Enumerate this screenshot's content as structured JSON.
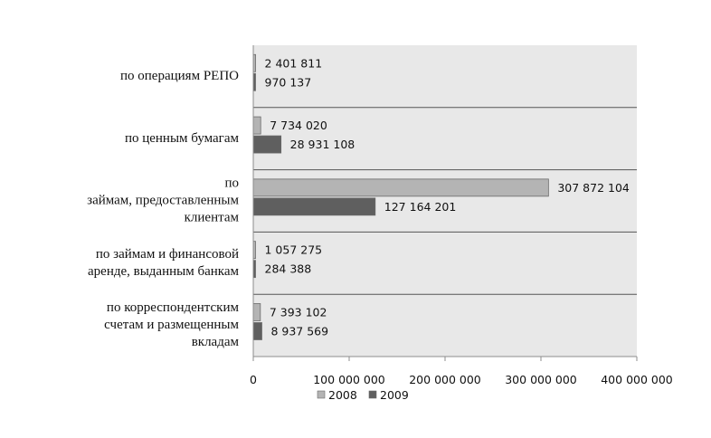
{
  "chart_data": {
    "type": "bar",
    "orientation": "horizontal",
    "categories": [
      [
        "по операциям РЕПО"
      ],
      [
        "по ценным бумагам"
      ],
      [
        "по",
        "займам, предоставленным",
        "клиентам"
      ],
      [
        "по займам и финансовой",
        "аренде, выданным банкам"
      ],
      [
        "по корреспондентским",
        "счетам и размещенным",
        "вкладам"
      ]
    ],
    "series": [
      {
        "name": "2008",
        "color": "#b4b4b4",
        "values": [
          2401811,
          7734020,
          307872104,
          1057275,
          7393102
        ],
        "labels": [
          "2 401 811",
          "7 734 020",
          "307 872 104",
          "1 057 275",
          "7 393 102"
        ]
      },
      {
        "name": "2009",
        "color": "#5f5f5f",
        "values": [
          970137,
          28931108,
          127164201,
          284388,
          8937569
        ],
        "labels": [
          "970 137",
          "28 931 108",
          "127 164 201",
          "284 388",
          "8 937 569"
        ]
      }
    ],
    "xlim": [
      0,
      400000000
    ],
    "ticks": [
      0,
      100000000,
      200000000,
      300000000,
      400000000
    ],
    "tick_labels": [
      "0",
      "100 000 000",
      "200 000 000",
      "300 000 000",
      "400 000 000"
    ],
    "legend_position": "bottom",
    "plot_background": "#e8e8e8",
    "grid": false
  }
}
